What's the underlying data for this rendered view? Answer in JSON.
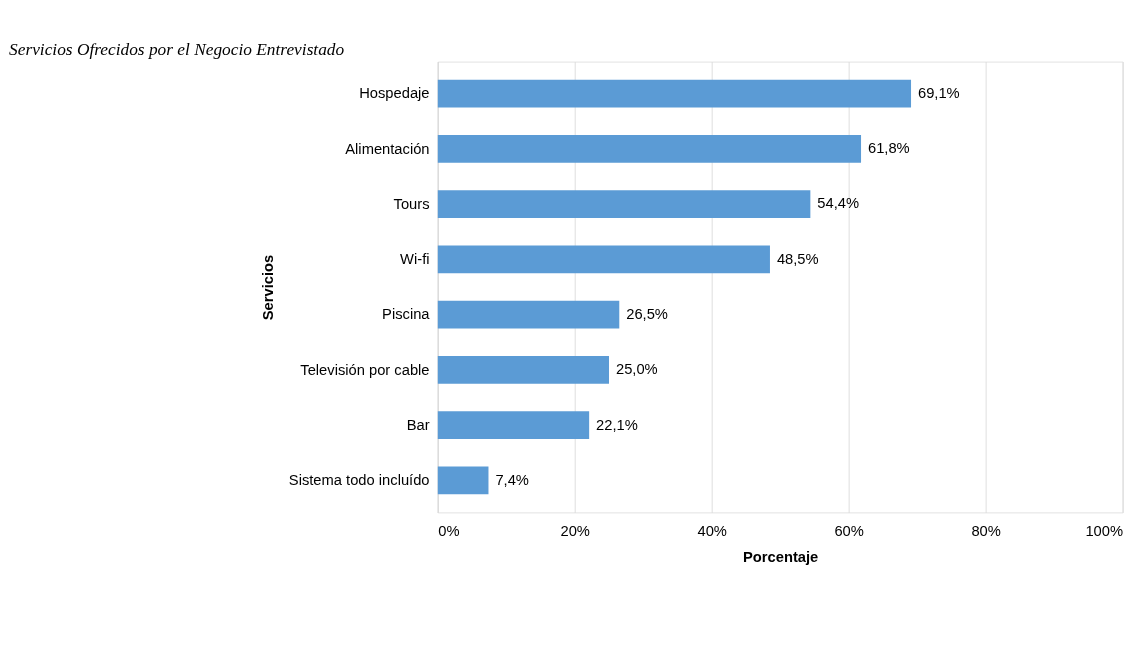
{
  "chart_data": {
    "type": "bar",
    "orientation": "horizontal",
    "title": "Servicios Ofrecidos por el Negocio Entrevistado",
    "xlabel": "Porcentaje",
    "ylabel": "Servicios",
    "categories": [
      "Hospedaje",
      "Alimentación",
      "Tours",
      "Wi-fi",
      "Piscina",
      "Televisión por cable",
      "Bar",
      "Sistema todo incluído"
    ],
    "values": [
      69.1,
      61.8,
      54.4,
      48.5,
      26.5,
      25.0,
      22.1,
      7.4
    ],
    "value_labels": [
      "69,1%",
      "61,8%",
      "54,4%",
      "48,5%",
      "26,5%",
      "25,0%",
      "22,1%",
      "7,4%"
    ],
    "color": "#5b9bd5",
    "xlim": [
      0,
      100
    ],
    "xticks": [
      {
        "value": 0,
        "label": "0%"
      },
      {
        "value": 20,
        "label": "20%"
      },
      {
        "value": 40,
        "label": "40%"
      },
      {
        "value": 60,
        "label": "60%"
      },
      {
        "value": 80,
        "label": "80%"
      },
      {
        "value": 100,
        "label": "100%"
      }
    ],
    "grid": "x"
  }
}
